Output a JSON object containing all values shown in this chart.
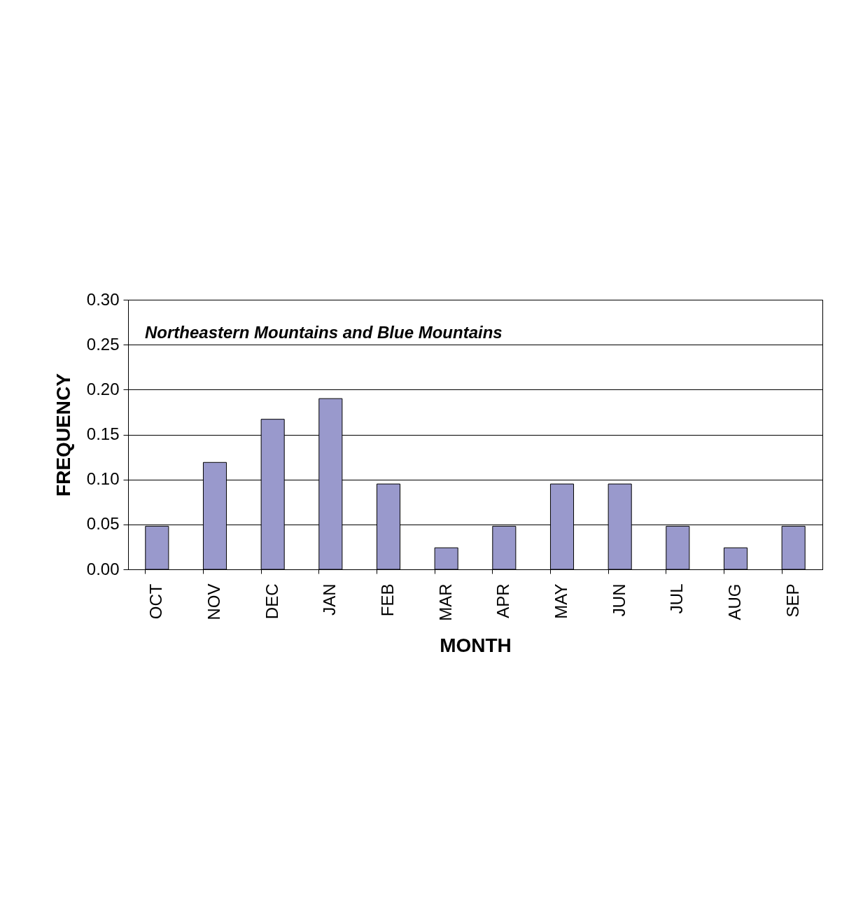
{
  "chart_data": {
    "type": "bar",
    "title": "Northeastern Mountains and Blue Mountains",
    "xlabel": "MONTH",
    "ylabel": "FREQUENCY",
    "categories": [
      "OCT",
      "NOV",
      "DEC",
      "JAN",
      "FEB",
      "MAR",
      "APR",
      "MAY",
      "JUN",
      "JUL",
      "AUG",
      "SEP"
    ],
    "values": [
      0.048,
      0.119,
      0.167,
      0.19,
      0.095,
      0.024,
      0.048,
      0.095,
      0.095,
      0.048,
      0.024,
      0.048
    ],
    "color": "#9999cc",
    "ylim": [
      0,
      0.3
    ],
    "yticks": [
      {
        "value": 0,
        "label": "0.00"
      },
      {
        "value": 0.05,
        "label": "0.05"
      },
      {
        "value": 0.1,
        "label": "0.10"
      },
      {
        "value": 0.15,
        "label": "0.15"
      },
      {
        "value": 0.2,
        "label": "0.20"
      },
      {
        "value": 0.25,
        "label": "0.25"
      },
      {
        "value": 0.3,
        "label": "0.30"
      }
    ],
    "grid": "y"
  }
}
